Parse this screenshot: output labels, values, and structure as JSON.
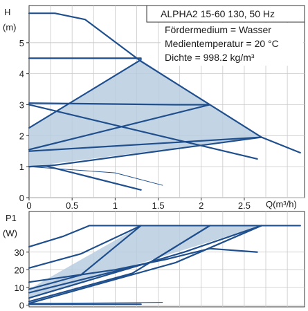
{
  "chart_data": [
    {
      "type": "line",
      "panel": "head",
      "title_box": {
        "title": "ALPHA2 15-60 130, 50 Hz",
        "lines": [
          "Fördermedium = Wasser",
          "Medientemperatur = 20 °C",
          "Dichte = 998.2 kg/m³"
        ]
      },
      "ylabel": "H",
      "yunit": "(m)",
      "xlabel": "Q(m³/h)",
      "xlim": [
        0,
        3.2
      ],
      "ylim": [
        0,
        6.2
      ],
      "xticks": [
        "0",
        "0.5",
        "1",
        "1.5",
        "2",
        "2.5"
      ],
      "xtick_values": [
        0,
        0.5,
        1,
        1.5,
        2,
        2.5
      ],
      "yticks": [
        "0",
        "1",
        "2",
        "3",
        "4",
        "5"
      ],
      "ytick_values": [
        0,
        1,
        2,
        3,
        4,
        5
      ],
      "grid": true,
      "shaded_region": [
        [
          0,
          2.25
        ],
        [
          1.3,
          4.45
        ],
        [
          2.1,
          3
        ],
        [
          2.7,
          1.95
        ],
        [
          0,
          1
        ]
      ],
      "series": [
        {
          "values": [
            [
              0,
              5.95
            ],
            [
              0.3,
              5.95
            ],
            [
              0.65,
              5.75
            ],
            [
              1.3,
              4.4
            ],
            [
              2.1,
              3
            ],
            [
              2.7,
              1.95
            ],
            [
              3.15,
              1.45
            ]
          ]
        },
        {
          "values": [
            [
              0,
              4.5
            ],
            [
              1.3,
              4.5
            ]
          ]
        },
        {
          "values": [
            [
              0,
              3.05
            ],
            [
              1.7,
              3.0
            ],
            [
              2.1,
              3.0
            ]
          ]
        },
        {
          "values": [
            [
              0,
              3.0
            ],
            [
              2.65,
              1.25
            ]
          ]
        },
        {
          "values": [
            [
              0,
              2.25
            ],
            [
              1.3,
              4.45
            ]
          ]
        },
        {
          "values": [
            [
              0,
              1.55
            ],
            [
              2.1,
              3.0
            ]
          ]
        },
        {
          "values": [
            [
              0,
              1.5
            ],
            [
              2.7,
              1.95
            ]
          ]
        },
        {
          "values": [
            [
              0,
              1.0
            ],
            [
              0.3,
              1.05
            ],
            [
              2.7,
              1.95
            ]
          ]
        },
        {
          "values": [
            [
              0,
              1.0
            ],
            [
              0.2,
              1.02
            ],
            [
              1.3,
              0.25
            ]
          ]
        },
        {
          "values": [
            [
              0,
              1.0
            ],
            [
              1.0,
              0.8
            ],
            [
              1.55,
              0.4
            ]
          ]
        }
      ]
    },
    {
      "type": "line",
      "panel": "power",
      "ylabel": "P1",
      "yunit": "(W)",
      "xlim": [
        0,
        3.2
      ],
      "ylim": [
        -1,
        53
      ],
      "yticks": [
        "0",
        "10",
        "20",
        "30"
      ],
      "ytick_values": [
        0,
        10,
        20,
        30
      ],
      "grid": true,
      "shaded_region": [
        [
          0,
          9
        ],
        [
          1.3,
          45
        ],
        [
          2.1,
          45
        ],
        [
          2.7,
          45
        ],
        [
          0,
          4
        ]
      ],
      "series": [
        {
          "values": [
            [
              0,
              33
            ],
            [
              0.4,
              39
            ],
            [
              0.7,
              45
            ],
            [
              3.15,
              45
            ]
          ]
        },
        {
          "values": [
            [
              0,
              21
            ],
            [
              0.6,
              29
            ],
            [
              1.3,
              45
            ]
          ]
        },
        {
          "values": [
            [
              0,
              13
            ],
            [
              1.0,
              20
            ],
            [
              1.6,
              26
            ],
            [
              2.1,
              32
            ],
            [
              2.65,
              30
            ]
          ]
        },
        {
          "values": [
            [
              0,
              9
            ],
            [
              0.6,
              17
            ],
            [
              1.3,
              45
            ]
          ]
        },
        {
          "values": [
            [
              0,
              7
            ],
            [
              1.4,
              24
            ],
            [
              2.1,
              45
            ]
          ]
        },
        {
          "values": [
            [
              0,
              4
            ],
            [
              1.8,
              30
            ],
            [
              2.7,
              45
            ]
          ]
        },
        {
          "values": [
            [
              0,
              2
            ],
            [
              1.2,
              18
            ],
            [
              2.1,
              45
            ]
          ]
        },
        {
          "values": [
            [
              0,
              1
            ],
            [
              1.7,
              24
            ],
            [
              2.7,
              45
            ]
          ]
        },
        {
          "values": [
            [
              0,
              0.5
            ],
            [
              1.3,
              0.5
            ]
          ]
        },
        {
          "values": [
            [
              0,
              1
            ],
            [
              1.55,
              1.5
            ]
          ]
        }
      ]
    }
  ],
  "style": {
    "line": "#1f4f8c",
    "fill": "#b9cde0",
    "grid": "#c8c8c8",
    "border": "#333333"
  }
}
